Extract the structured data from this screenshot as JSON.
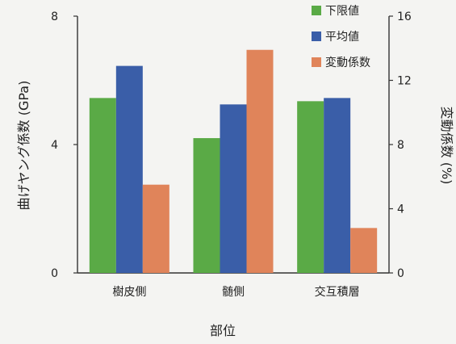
{
  "chart_data": {
    "type": "bar",
    "categories": [
      "樹皮側",
      "髄側",
      "交互積層"
    ],
    "series": [
      {
        "name": "下限値",
        "axis": "left",
        "color": "#5aaa46",
        "values": [
          5.45,
          4.2,
          5.35
        ]
      },
      {
        "name": "平均値",
        "axis": "left",
        "color": "#3a5ea8",
        "values": [
          6.45,
          5.25,
          5.45
        ]
      },
      {
        "name": "変動係数",
        "axis": "right",
        "color": "#e0845a",
        "values": [
          5.5,
          13.9,
          2.8
        ]
      }
    ],
    "xlabel": "部位",
    "ylabel": "曲げヤング係数 (GPa)",
    "y2label": "変動係数 (%)",
    "ylim": [
      0,
      8
    ],
    "y2lim": [
      0,
      16
    ],
    "yticks": [
      0,
      4,
      8
    ],
    "y2ticks": [
      0,
      4,
      8,
      12,
      16
    ],
    "grid": false,
    "legend": "top-right"
  }
}
